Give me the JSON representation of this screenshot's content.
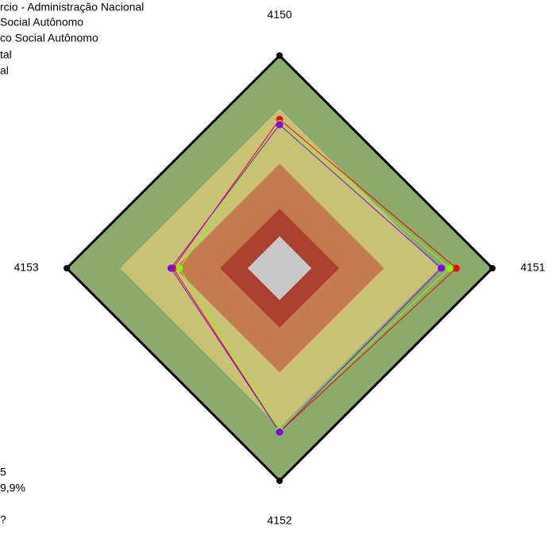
{
  "chart_data": {
    "type": "radar",
    "categories": [
      "4150",
      "4151",
      "4152",
      "4153"
    ],
    "ylim": [
      0,
      100
    ],
    "bands": [
      {
        "value": 100,
        "color": "#8aab6a"
      },
      {
        "value": 75,
        "color": "#c8c275"
      },
      {
        "value": 49,
        "color": "#c47b50"
      },
      {
        "value": 28,
        "color": "#ad4130"
      },
      {
        "value": 15,
        "color": "#c8c8c8"
      }
    ],
    "series": [
      {
        "color": "#ff0000",
        "values": [
          70,
          83,
          77,
          50
        ]
      },
      {
        "color": "#80ff00",
        "values": [
          68,
          80,
          76,
          47
        ]
      },
      {
        "color": "#8000ff",
        "values": [
          67.5,
          76,
          77,
          51
        ]
      }
    ],
    "legend_items": [
      "rcio - Administração Nacional",
      "Social Autônomo",
      "co Social Autônomo",
      "tal",
      "al"
    ],
    "footnotes": [
      "5",
      "9,9%",
      "?"
    ]
  }
}
